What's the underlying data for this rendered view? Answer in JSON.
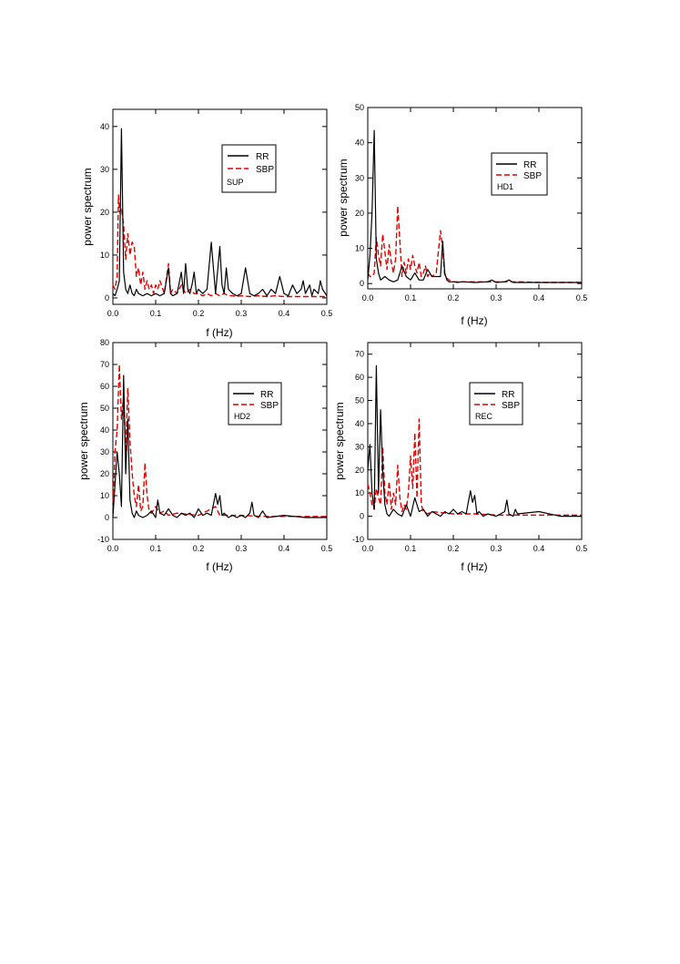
{
  "chart_data": [
    {
      "type": "line",
      "xlabel": "f (Hz)",
      "ylabel": "power spectrum",
      "xlim": [
        0,
        0.5
      ],
      "ylim": [
        -1.5,
        44
      ],
      "xticks": [
        "0.0",
        "0.1",
        "0.2",
        "0.3",
        "0.4",
        "0.5"
      ],
      "yticks": [
        0,
        10,
        20,
        30,
        40
      ],
      "legend": {
        "position": "top-right",
        "entries": [
          "RR",
          "SBP"
        ],
        "label": "SUP"
      },
      "series": [
        {
          "name": "RR",
          "color": "#000000",
          "style": "solid",
          "x": [
            0,
            0.005,
            0.01,
            0.015,
            0.02,
            0.025,
            0.03,
            0.035,
            0.04,
            0.045,
            0.05,
            0.055,
            0.06,
            0.07,
            0.08,
            0.09,
            0.1,
            0.11,
            0.12,
            0.13,
            0.135,
            0.14,
            0.15,
            0.16,
            0.165,
            0.17,
            0.175,
            0.18,
            0.185,
            0.19,
            0.195,
            0.2,
            0.21,
            0.22,
            0.23,
            0.24,
            0.25,
            0.255,
            0.26,
            0.265,
            0.27,
            0.28,
            0.29,
            0.3,
            0.31,
            0.32,
            0.33,
            0.34,
            0.35,
            0.36,
            0.37,
            0.38,
            0.385,
            0.39,
            0.4,
            0.41,
            0.42,
            0.43,
            0.44,
            0.445,
            0.45,
            0.46,
            0.465,
            0.47,
            0.48,
            0.485,
            0.49,
            0.5
          ],
          "y": [
            1,
            0.5,
            2,
            4,
            39.5,
            6,
            2,
            1,
            3,
            1,
            0.5,
            2,
            1,
            0.5,
            1,
            0.5,
            1,
            0.5,
            1,
            7,
            1,
            0.5,
            1,
            6,
            1,
            8,
            2,
            1,
            3,
            6,
            1,
            2,
            1,
            2,
            13,
            1,
            12,
            3,
            1,
            7,
            2,
            1,
            0.5,
            1,
            7,
            1,
            0.5,
            1,
            2,
            0.5,
            2,
            1,
            3,
            5,
            1,
            0.5,
            3,
            1,
            2,
            4,
            1,
            3,
            0.5,
            2,
            1,
            4,
            2,
            0.5
          ]
        },
        {
          "name": "SBP",
          "color": "#e00000",
          "style": "dashed",
          "x": [
            0,
            0.005,
            0.01,
            0.013,
            0.016,
            0.02,
            0.025,
            0.03,
            0.035,
            0.04,
            0.045,
            0.05,
            0.055,
            0.06,
            0.065,
            0.07,
            0.075,
            0.08,
            0.085,
            0.09,
            0.095,
            0.1,
            0.105,
            0.11,
            0.12,
            0.13,
            0.135,
            0.14,
            0.15,
            0.16,
            0.17,
            0.18,
            0.19,
            0.2,
            0.21,
            0.22,
            0.23,
            0.24,
            0.25,
            0.26,
            0.27,
            0.28,
            0.29,
            0.3,
            0.32,
            0.34,
            0.36,
            0.38,
            0.4,
            0.42,
            0.44,
            0.46,
            0.48,
            0.5
          ],
          "y": [
            3,
            2,
            5,
            24,
            20,
            21,
            17,
            9,
            15,
            10,
            13,
            12,
            5,
            7,
            3,
            6,
            2,
            4,
            2,
            3,
            1,
            3,
            2,
            4,
            1,
            8,
            1,
            2,
            1,
            3,
            1,
            2,
            1,
            1,
            0.5,
            1,
            0.5,
            1,
            0.5,
            1,
            0.5,
            0.5,
            0.3,
            0.5,
            0.3,
            0.5,
            0.3,
            0.5,
            0.3,
            0.3,
            0.3,
            0.3,
            0.3,
            0.3
          ]
        }
      ]
    },
    {
      "type": "line",
      "xlabel": "f (Hz)",
      "ylabel": "power spectrum",
      "xlim": [
        0,
        0.5
      ],
      "ylim": [
        -1.5,
        50
      ],
      "xticks": [
        "0.0",
        "0.1",
        "0.2",
        "0.3",
        "0.4",
        "0.5"
      ],
      "yticks": [
        0,
        10,
        20,
        30,
        40,
        50
      ],
      "legend": {
        "position": "top-right",
        "entries": [
          "RR",
          "SBP"
        ],
        "label": "HD1"
      },
      "series": [
        {
          "name": "RR",
          "color": "#000000",
          "style": "solid",
          "x": [
            0,
            0.005,
            0.01,
            0.015,
            0.02,
            0.025,
            0.03,
            0.04,
            0.05,
            0.06,
            0.07,
            0.08,
            0.09,
            0.1,
            0.11,
            0.12,
            0.13,
            0.14,
            0.15,
            0.16,
            0.17,
            0.175,
            0.18,
            0.185,
            0.19,
            0.2,
            0.21,
            0.22,
            0.25,
            0.28,
            0.29,
            0.3,
            0.32,
            0.33,
            0.34,
            0.4,
            0.45,
            0.5
          ],
          "y": [
            1,
            8,
            20,
            43.5,
            7,
            3,
            1,
            2,
            1,
            0.5,
            1,
            5,
            2,
            1,
            3,
            1,
            1,
            4,
            2,
            2,
            2,
            12,
            3,
            1,
            0.5,
            0.5,
            0.3,
            0.5,
            0.3,
            0.5,
            1,
            0.3,
            0.5,
            1,
            0.3,
            0.3,
            0.3,
            0.3
          ]
        },
        {
          "name": "SBP",
          "color": "#e00000",
          "style": "dashed",
          "x": [
            0,
            0.005,
            0.01,
            0.015,
            0.02,
            0.025,
            0.03,
            0.035,
            0.04,
            0.045,
            0.05,
            0.055,
            0.06,
            0.065,
            0.07,
            0.075,
            0.08,
            0.085,
            0.09,
            0.095,
            0.1,
            0.105,
            0.11,
            0.115,
            0.12,
            0.125,
            0.13,
            0.135,
            0.14,
            0.145,
            0.15,
            0.16,
            0.17,
            0.175,
            0.18,
            0.19,
            0.2,
            0.22,
            0.25,
            0.3,
            0.35,
            0.4,
            0.45,
            0.5
          ],
          "y": [
            3,
            2,
            2,
            3,
            13,
            8,
            5,
            14,
            9,
            4,
            11,
            6,
            3,
            7,
            22,
            12,
            2,
            6,
            3,
            7,
            4,
            8,
            5,
            3,
            6,
            2,
            3,
            5,
            2,
            3,
            2,
            3,
            15,
            10,
            2,
            1,
            0.5,
            0.5,
            0.5,
            0.5,
            0.5,
            0.3,
            0.3,
            0.3
          ]
        }
      ]
    },
    {
      "type": "line",
      "xlabel": "f (Hz)",
      "ylabel": "power spectrum",
      "xlim": [
        0,
        0.5
      ],
      "ylim": [
        -10,
        80
      ],
      "xticks": [
        "0.0",
        "0.1",
        "0.2",
        "0.3",
        "0.4",
        "0.5"
      ],
      "yticks": [
        -10,
        0,
        10,
        20,
        30,
        40,
        50,
        60,
        70,
        80
      ],
      "legend": {
        "position": "top-right",
        "entries": [
          "RR",
          "SBP"
        ],
        "label": "HD2"
      },
      "series": [
        {
          "name": "RR",
          "color": "#000000",
          "style": "solid",
          "x": [
            0,
            0.005,
            0.01,
            0.015,
            0.02,
            0.025,
            0.03,
            0.035,
            0.04,
            0.045,
            0.05,
            0.055,
            0.06,
            0.07,
            0.08,
            0.09,
            0.1,
            0.105,
            0.11,
            0.12,
            0.13,
            0.14,
            0.15,
            0.16,
            0.17,
            0.18,
            0.19,
            0.2,
            0.21,
            0.22,
            0.23,
            0.24,
            0.245,
            0.25,
            0.255,
            0.26,
            0.27,
            0.28,
            0.29,
            0.3,
            0.31,
            0.32,
            0.325,
            0.33,
            0.34,
            0.35,
            0.36,
            0.4,
            0.45,
            0.5
          ],
          "y": [
            0,
            15,
            30,
            20,
            5,
            65,
            20,
            45,
            8,
            2,
            0,
            3,
            1,
            0,
            1,
            3,
            0,
            8,
            2,
            1,
            4,
            1,
            0,
            2,
            1,
            2,
            0,
            4,
            1,
            2,
            1,
            11,
            6,
            10,
            1,
            2,
            0,
            1,
            0,
            1,
            0,
            2,
            7,
            1,
            0,
            3,
            0,
            1,
            0,
            0
          ]
        },
        {
          "name": "SBP",
          "color": "#e00000",
          "style": "dashed",
          "x": [
            0,
            0.005,
            0.01,
            0.015,
            0.02,
            0.025,
            0.03,
            0.035,
            0.04,
            0.045,
            0.05,
            0.055,
            0.06,
            0.065,
            0.07,
            0.075,
            0.08,
            0.085,
            0.09,
            0.1,
            0.11,
            0.12,
            0.13,
            0.15,
            0.2,
            0.24,
            0.25,
            0.3,
            0.35,
            0.4,
            0.45,
            0.5
          ],
          "y": [
            3,
            30,
            40,
            70,
            45,
            55,
            30,
            59,
            35,
            20,
            10,
            5,
            15,
            3,
            5,
            25,
            10,
            3,
            2,
            5,
            2,
            3,
            1,
            2,
            1,
            5,
            1,
            1,
            0.5,
            0.5,
            0.5,
            0.5
          ]
        }
      ]
    },
    {
      "type": "line",
      "xlabel": "f (Hz)",
      "ylabel": "power spectrum",
      "xlim": [
        0,
        0.5
      ],
      "ylim": [
        -10,
        75
      ],
      "xticks": [
        "0.0",
        "0.1",
        "0.2",
        "0.3",
        "0.4",
        "0.5"
      ],
      "yticks": [
        -10,
        0,
        10,
        20,
        30,
        40,
        50,
        60,
        70
      ],
      "legend": {
        "position": "top-right",
        "entries": [
          "RR",
          "SBP"
        ],
        "label": "REC"
      },
      "series": [
        {
          "name": "RR",
          "color": "#000000",
          "style": "solid",
          "x": [
            0,
            0.005,
            0.01,
            0.015,
            0.02,
            0.025,
            0.03,
            0.035,
            0.04,
            0.045,
            0.05,
            0.06,
            0.07,
            0.08,
            0.09,
            0.1,
            0.11,
            0.12,
            0.13,
            0.14,
            0.15,
            0.16,
            0.17,
            0.18,
            0.19,
            0.2,
            0.21,
            0.22,
            0.23,
            0.24,
            0.245,
            0.25,
            0.255,
            0.26,
            0.27,
            0.28,
            0.3,
            0.32,
            0.325,
            0.33,
            0.34,
            0.345,
            0.35,
            0.4,
            0.45,
            0.5
          ],
          "y": [
            20,
            31,
            10,
            3,
            65,
            10,
            46,
            20,
            5,
            1,
            0,
            3,
            1,
            0,
            5,
            0,
            8,
            2,
            3,
            0,
            2,
            1,
            0,
            2,
            1,
            3,
            1,
            2,
            1,
            11,
            6,
            9,
            1,
            2,
            0,
            1,
            0,
            2,
            7,
            1,
            0,
            3,
            1,
            2,
            0,
            0
          ]
        },
        {
          "name": "SBP",
          "color": "#e00000",
          "style": "dashed",
          "x": [
            0,
            0.005,
            0.01,
            0.015,
            0.02,
            0.025,
            0.03,
            0.035,
            0.04,
            0.045,
            0.05,
            0.055,
            0.06,
            0.065,
            0.07,
            0.075,
            0.08,
            0.085,
            0.09,
            0.095,
            0.1,
            0.105,
            0.11,
            0.115,
            0.12,
            0.125,
            0.13,
            0.14,
            0.15,
            0.2,
            0.25,
            0.3,
            0.35,
            0.4,
            0.45,
            0.5
          ],
          "y": [
            14,
            10,
            5,
            3,
            12,
            8,
            5,
            30,
            10,
            5,
            15,
            3,
            10,
            5,
            22,
            8,
            2,
            5,
            3,
            10,
            26,
            12,
            36,
            8,
            42,
            5,
            2,
            1,
            2,
            1,
            1,
            0.5,
            0.5,
            0.5,
            0.5,
            0.5
          ]
        }
      ]
    }
  ]
}
